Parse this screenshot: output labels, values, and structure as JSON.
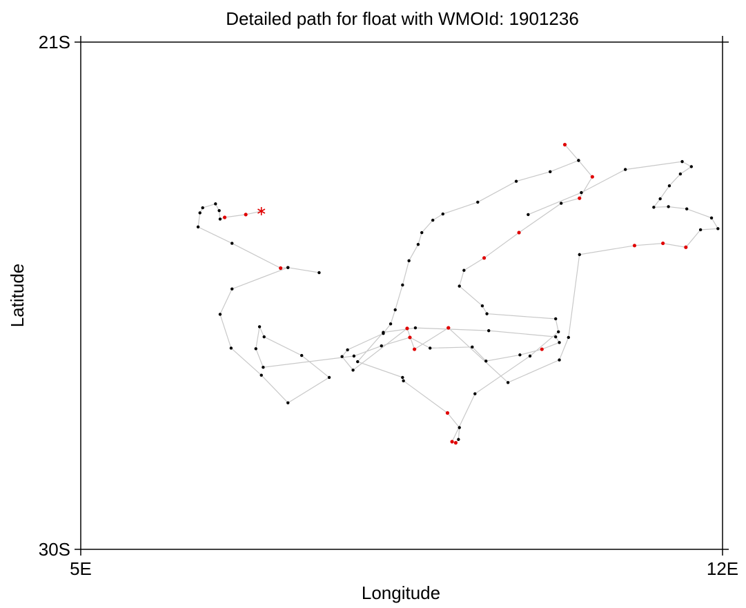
{
  "chart_data": {
    "type": "scatter",
    "title": "Detailed path for float with WMOId: 1901236",
    "xlabel": "Longitude",
    "ylabel": "Latitude",
    "xlim": [
      5,
      12
    ],
    "ylim": [
      -30,
      -21
    ],
    "x_ticks": [
      {
        "value": 5,
        "label": "5E"
      },
      {
        "value": 12,
        "label": "12E"
      }
    ],
    "y_ticks": [
      {
        "value": -21,
        "label": "21S"
      },
      {
        "value": -30,
        "label": "30S"
      }
    ],
    "grid": false,
    "colors": {
      "path_line": "#c8c8c8",
      "normal_point": "#000000",
      "highlight_point": "#e00000",
      "start_marker": "#e00000"
    },
    "series": [
      {
        "values": [
          {
            "x": 6.97,
            "y": -24.0
          },
          {
            "x": 6.8,
            "y": -24.06,
            "highlight": true
          },
          {
            "x": 6.57,
            "y": -24.11,
            "highlight": true
          },
          {
            "x": 6.52,
            "y": -24.14
          },
          {
            "x": 6.51,
            "y": -23.99
          },
          {
            "x": 6.47,
            "y": -23.87
          },
          {
            "x": 6.33,
            "y": -23.94
          },
          {
            "x": 6.3,
            "y": -24.03
          },
          {
            "x": 6.28,
            "y": -24.28
          },
          {
            "x": 6.65,
            "y": -24.57
          },
          {
            "x": 7.18,
            "y": -25.01,
            "highlight": true
          },
          {
            "x": 7.26,
            "y": -25.0
          },
          {
            "x": 7.6,
            "y": -25.09
          },
          {
            "x": 7.26,
            "y": -25.0
          },
          {
            "x": 6.65,
            "y": -25.38
          },
          {
            "x": 6.52,
            "y": -25.83
          },
          {
            "x": 6.64,
            "y": -26.43
          },
          {
            "x": 6.97,
            "y": -26.91
          },
          {
            "x": 7.26,
            "y": -27.4
          },
          {
            "x": 7.71,
            "y": -26.95
          },
          {
            "x": 7.41,
            "y": -26.56
          },
          {
            "x": 7.0,
            "y": -26.23
          },
          {
            "x": 6.95,
            "y": -26.05
          },
          {
            "x": 6.91,
            "y": -26.44
          },
          {
            "x": 6.99,
            "y": -26.77
          },
          {
            "x": 7.98,
            "y": -26.57
          },
          {
            "x": 8.28,
            "y": -26.39
          },
          {
            "x": 8.59,
            "y": -26.24,
            "highlight": true
          },
          {
            "x": 8.81,
            "y": -26.43
          },
          {
            "x": 9.27,
            "y": -26.41
          },
          {
            "x": 9.42,
            "y": -26.66
          },
          {
            "x": 9.79,
            "y": -26.55
          },
          {
            "x": 10.03,
            "y": -26.45,
            "highlight": true
          },
          {
            "x": 10.22,
            "y": -26.33
          },
          {
            "x": 10.18,
            "y": -26.23
          },
          {
            "x": 9.45,
            "y": -26.12
          },
          {
            "x": 8.65,
            "y": -26.07
          },
          {
            "x": 8.3,
            "y": -26.15
          },
          {
            "x": 8.02,
            "y": -26.67
          },
          {
            "x": 8.51,
            "y": -26.95
          },
          {
            "x": 8.52,
            "y": -27.01
          },
          {
            "x": 9.0,
            "y": -27.58,
            "highlight": true
          },
          {
            "x": 9.13,
            "y": -27.84
          },
          {
            "x": 9.12,
            "y": -28.05
          },
          {
            "x": 9.09,
            "y": -28.11,
            "highlight": true
          },
          {
            "x": 9.05,
            "y": -28.09,
            "highlight": true
          },
          {
            "x": 9.3,
            "y": -27.24
          },
          {
            "x": 9.9,
            "y": -26.57
          },
          {
            "x": 10.21,
            "y": -26.14
          },
          {
            "x": 10.18,
            "y": -25.91
          },
          {
            "x": 9.43,
            "y": -25.82
          },
          {
            "x": 9.38,
            "y": -25.68
          },
          {
            "x": 9.13,
            "y": -25.33
          },
          {
            "x": 9.18,
            "y": -25.05
          },
          {
            "x": 9.4,
            "y": -24.83,
            "highlight": true
          },
          {
            "x": 9.78,
            "y": -24.38,
            "highlight": true
          },
          {
            "x": 10.24,
            "y": -23.86
          },
          {
            "x": 10.44,
            "y": -23.77,
            "highlight": true
          },
          {
            "x": 10.58,
            "y": -23.39,
            "highlight": true
          },
          {
            "x": 10.43,
            "y": -23.1
          },
          {
            "x": 10.28,
            "y": -22.82,
            "highlight": true
          },
          {
            "x": 10.43,
            "y": -23.1
          },
          {
            "x": 10.12,
            "y": -23.3
          },
          {
            "x": 9.75,
            "y": -23.47
          },
          {
            "x": 9.33,
            "y": -23.84
          },
          {
            "x": 8.95,
            "y": -24.05
          },
          {
            "x": 8.84,
            "y": -24.16
          },
          {
            "x": 8.72,
            "y": -24.38
          },
          {
            "x": 8.68,
            "y": -24.59
          },
          {
            "x": 8.58,
            "y": -24.88
          },
          {
            "x": 8.51,
            "y": -25.31
          },
          {
            "x": 8.43,
            "y": -25.75
          },
          {
            "x": 8.38,
            "y": -26.0
          },
          {
            "x": 8.3,
            "y": -26.17
          },
          {
            "x": 7.91,
            "y": -26.46
          },
          {
            "x": 7.85,
            "y": -26.58
          },
          {
            "x": 7.97,
            "y": -26.82
          },
          {
            "x": 8.56,
            "y": -26.08,
            "highlight": true
          },
          {
            "x": 8.64,
            "y": -26.45,
            "highlight": true
          },
          {
            "x": 9.01,
            "y": -26.07,
            "highlight": true
          },
          {
            "x": 9.01,
            "y": -26.07,
            "highlight": true
          },
          {
            "x": 9.66,
            "y": -27.04
          },
          {
            "x": 10.22,
            "y": -26.64
          },
          {
            "x": 10.32,
            "y": -26.24
          },
          {
            "x": 10.44,
            "y": -24.77
          },
          {
            "x": 11.04,
            "y": -24.61,
            "highlight": true
          },
          {
            "x": 11.35,
            "y": -24.57,
            "highlight": true
          },
          {
            "x": 11.6,
            "y": -24.64,
            "highlight": true
          },
          {
            "x": 11.76,
            "y": -24.33
          },
          {
            "x": 11.95,
            "y": -24.31
          },
          {
            "x": 11.88,
            "y": -24.12
          },
          {
            "x": 11.61,
            "y": -23.96
          },
          {
            "x": 11.41,
            "y": -23.92
          },
          {
            "x": 11.25,
            "y": -23.93
          },
          {
            "x": 11.32,
            "y": -23.78
          },
          {
            "x": 11.42,
            "y": -23.55
          },
          {
            "x": 11.54,
            "y": -23.34
          },
          {
            "x": 11.66,
            "y": -23.21
          },
          {
            "x": 11.56,
            "y": -23.12
          },
          {
            "x": 10.94,
            "y": -23.26
          },
          {
            "x": 10.46,
            "y": -23.67
          },
          {
            "x": 9.88,
            "y": -24.06
          }
        ]
      }
    ],
    "start": {
      "x": 6.97,
      "y": -24.0,
      "symbol": "*"
    }
  }
}
